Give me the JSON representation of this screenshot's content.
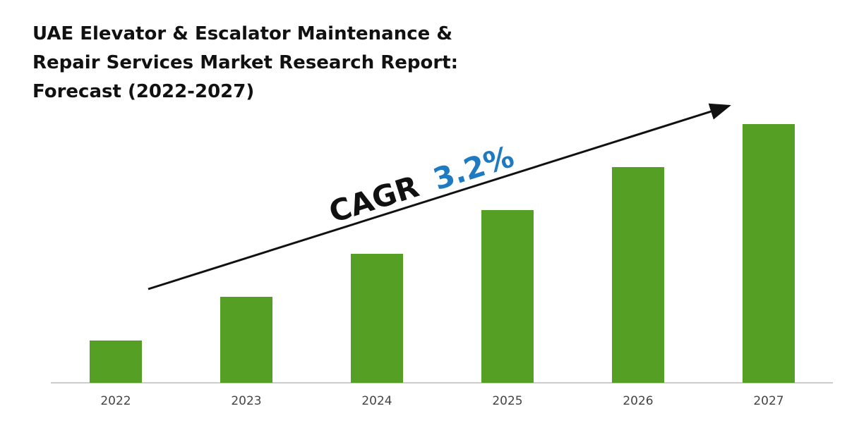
{
  "chart_data": {
    "type": "bar",
    "title": [
      "UAE Elevator & Escalator Maintenance &",
      "Repair Services Market Research Report:",
      "Forecast (2022-2027)"
    ],
    "annotation": {
      "label": "CAGR",
      "value": "3.2%"
    },
    "categories": [
      "2022",
      "2023",
      "2024",
      "2025",
      "2026",
      "2027"
    ],
    "values": [
      60,
      122,
      183,
      245,
      306,
      367
    ],
    "color": "#55a024"
  }
}
